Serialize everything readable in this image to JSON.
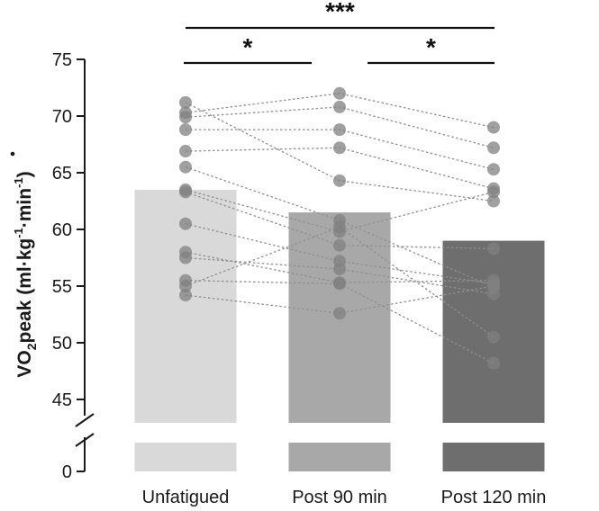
{
  "chart_data": {
    "type": "bar",
    "ylabel": "V̇O₂peak (ml·kg⁻¹·min⁻¹)",
    "ylabel_parts": [
      "V",
      "O",
      "2",
      "peak (ml·kg",
      "-1",
      "·min",
      "-1",
      ")"
    ],
    "ylim": [
      43,
      75
    ],
    "axis_break": true,
    "yticks": [
      45,
      50,
      55,
      60,
      65,
      70,
      75
    ],
    "zero_tick": "0",
    "categories": [
      "Unfatigued",
      "Post 90 min",
      "Post 120 min"
    ],
    "values": [
      63.5,
      61.5,
      59.0
    ],
    "bar_colors": [
      "#d9d9d9",
      "#a8a8a8",
      "#6e6e6e"
    ],
    "point_color": "#808080",
    "line_color": "#8f8f8f",
    "subjects": [
      [
        71.2,
        64.3,
        62.5
      ],
      [
        70.3,
        72.0,
        69.0
      ],
      [
        69.9,
        70.8,
        67.2
      ],
      [
        68.8,
        68.8,
        65.3
      ],
      [
        66.9,
        67.2,
        63.6
      ],
      [
        65.5,
        60.8,
        54.9
      ],
      [
        63.5,
        59.8,
        63.3
      ],
      [
        63.3,
        58.6,
        58.3
      ],
      [
        60.5,
        57.2,
        55.2
      ],
      [
        58.0,
        55.3,
        55.5
      ],
      [
        57.5,
        56.5,
        54.3
      ],
      [
        55.5,
        55.2,
        48.2
      ],
      [
        55.0,
        60.2,
        50.5
      ],
      [
        54.2,
        52.6,
        55.0
      ]
    ],
    "significance": [
      {
        "from": 0,
        "to": 2,
        "label": "***"
      },
      {
        "from": 0,
        "to": 1,
        "label": "*"
      },
      {
        "from": 1,
        "to": 2,
        "label": "*"
      }
    ]
  }
}
